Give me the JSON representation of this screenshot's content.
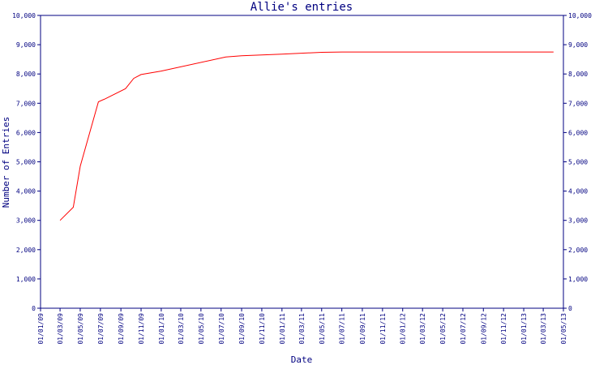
{
  "chart_data": {
    "type": "line",
    "title": "Allie's entries",
    "xlabel": "Date",
    "ylabel": "Number of Entries",
    "ylim": [
      0,
      10000
    ],
    "yticks": [
      0,
      1000,
      2000,
      3000,
      4000,
      5000,
      6000,
      7000,
      8000,
      9000,
      10000
    ],
    "ytick_labels": [
      "0",
      "1,000",
      "2,000",
      "3,000",
      "4,000",
      "5,000",
      "6,000",
      "7,000",
      "8,000",
      "9,000",
      "10,000"
    ],
    "xlim": [
      "2009-01-01",
      "2013-05-01"
    ],
    "xticks": [
      "2009-01-01",
      "2009-03-01",
      "2009-05-01",
      "2009-07-01",
      "2009-09-01",
      "2009-11-01",
      "2010-01-01",
      "2010-03-01",
      "2010-05-01",
      "2010-07-01",
      "2010-09-01",
      "2010-11-01",
      "2011-01-01",
      "2011-03-01",
      "2011-05-01",
      "2011-07-01",
      "2011-09-01",
      "2011-11-01",
      "2012-01-01",
      "2012-03-01",
      "2012-05-01",
      "2012-07-01",
      "2012-09-01",
      "2012-11-01",
      "2013-01-01",
      "2013-03-01",
      "2013-05-01"
    ],
    "xtick_labels": [
      "01/01/09",
      "01/03/09",
      "01/05/09",
      "01/07/09",
      "01/09/09",
      "01/11/09",
      "01/01/10",
      "01/03/10",
      "01/05/10",
      "01/07/10",
      "01/09/10",
      "01/11/10",
      "01/01/11",
      "01/03/11",
      "01/05/11",
      "01/07/11",
      "01/09/11",
      "01/11/11",
      "01/01/12",
      "01/03/12",
      "01/05/12",
      "01/07/12",
      "01/09/12",
      "01/11/12",
      "01/01/13",
      "01/03/13",
      "01/05/13"
    ],
    "grid": false,
    "series": [
      {
        "color": "#ff0000",
        "x": [
          "2009-03-01",
          "2009-04-10",
          "2009-05-01",
          "2009-06-25",
          "2009-07-15",
          "2009-09-15",
          "2009-10-10",
          "2009-11-01",
          "2010-01-01",
          "2010-07-15",
          "2010-09-01",
          "2011-01-01",
          "2011-05-01",
          "2011-07-01",
          "2012-01-01",
          "2013-04-01"
        ],
        "y": [
          3000,
          3450,
          4850,
          7050,
          7150,
          7500,
          7850,
          7980,
          8100,
          8580,
          8620,
          8680,
          8740,
          8750,
          8750,
          8750
        ]
      }
    ]
  },
  "colors": {
    "axis": "#000080",
    "line": "#ff0000"
  }
}
